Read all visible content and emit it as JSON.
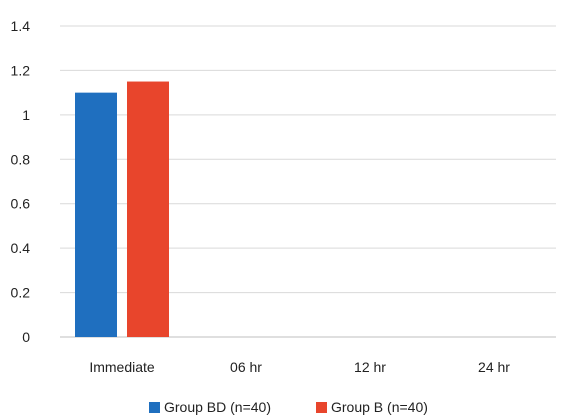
{
  "chart_data": {
    "type": "bar",
    "categories": [
      "Immediate",
      "06 hr",
      "12 hr",
      "24 hr"
    ],
    "series": [
      {
        "name": "Group BD (n=40)",
        "color": "#1F6FBF",
        "values": [
          1.1,
          null,
          null,
          null
        ]
      },
      {
        "name": "Group B (n=40)",
        "color": "#E8452C",
        "values": [
          1.15,
          null,
          null,
          null
        ]
      }
    ],
    "yticks": [
      "0",
      "0.2",
      "0.4",
      "0.6",
      "0.8",
      "1",
      "1.2",
      "1.4"
    ],
    "ylim": [
      0,
      1.4
    ],
    "grid": true,
    "legend_position": "bottom",
    "title": "",
    "xlabel": "",
    "ylabel": ""
  }
}
